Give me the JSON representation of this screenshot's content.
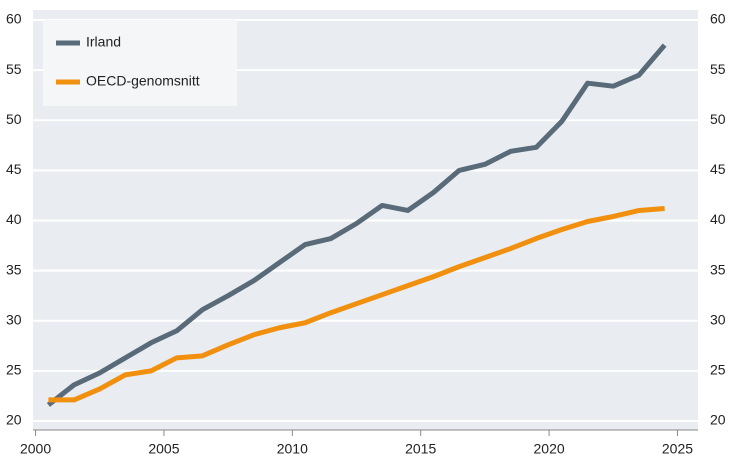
{
  "chart_data": {
    "type": "line",
    "x": [
      2000.5,
      2001.5,
      2002.5,
      2003.5,
      2004.5,
      2005.5,
      2006.5,
      2007.5,
      2008.5,
      2009.5,
      2010.5,
      2011.5,
      2012.5,
      2013.5,
      2014.5,
      2015.5,
      2016.5,
      2017.5,
      2018.5,
      2019.5,
      2020.5,
      2021.5,
      2022.5,
      2023.5,
      2024.5
    ],
    "series": [
      {
        "name": "Irland",
        "color": "#596a79",
        "values": [
          21.6,
          23.6,
          24.8,
          26.3,
          27.8,
          29.0,
          31.1,
          32.5,
          34.0,
          35.8,
          37.6,
          38.2,
          39.7,
          41.5,
          41.0,
          42.8,
          45.0,
          45.6,
          46.9,
          47.3,
          49.9,
          53.7,
          53.4,
          54.5,
          57.5
        ]
      },
      {
        "name": "OECD-genomsnitt",
        "color": "#f18f0f",
        "values": [
          22.1,
          22.1,
          23.2,
          24.6,
          25.0,
          26.3,
          26.5,
          27.6,
          28.6,
          29.3,
          29.8,
          30.8,
          31.7,
          32.6,
          33.5,
          34.4,
          35.4,
          36.3,
          37.2,
          38.2,
          39.1,
          39.9,
          40.4,
          41.0,
          41.2
        ]
      }
    ],
    "xlim": [
      1999.9,
      2025.8
    ],
    "xticks": [
      2000,
      2005,
      2010,
      2015,
      2020,
      2025
    ],
    "ylim": [
      19.1,
      61
    ],
    "yticks": [
      20,
      25,
      30,
      35,
      40,
      45,
      50,
      55,
      60
    ],
    "grid": true,
    "legend": "upper left"
  }
}
